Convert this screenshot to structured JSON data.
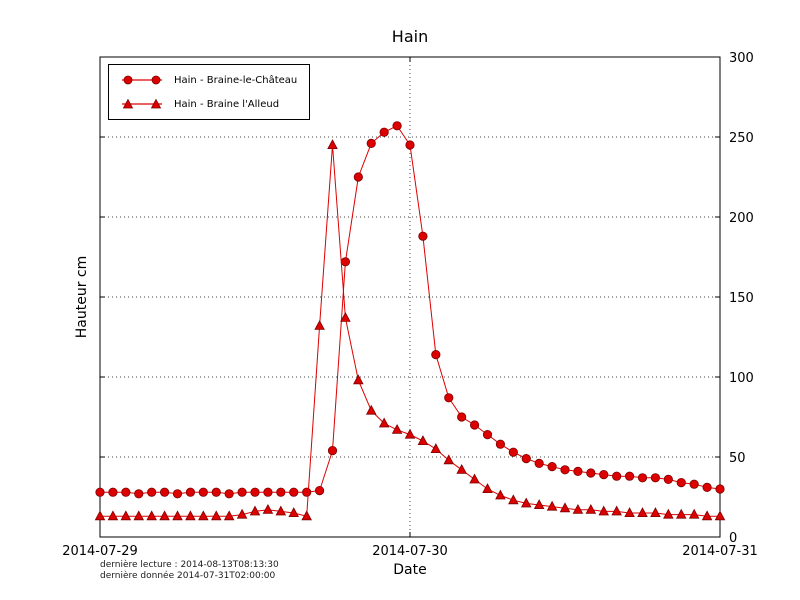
{
  "figure": {
    "background": "#ffffff"
  },
  "footer": {
    "line1": "dernière lecture : 2014-08-13T08:13:30",
    "line2": "dernière donnée  2014-07-31T02:00:00"
  },
  "chart_data": {
    "type": "line",
    "title": "Hain",
    "xlabel": "Date",
    "ylabel": "Hauteur cm",
    "x_unit": "hours since 2014-07-29 00:00",
    "x_range_hours": [
      0,
      48
    ],
    "ylim": [
      0,
      300
    ],
    "x_ticks": [
      {
        "hour": 0,
        "label": "2014-07-29"
      },
      {
        "hour": 24,
        "label": "2014-07-30"
      },
      {
        "hour": 48,
        "label": "2014-07-31"
      }
    ],
    "y_ticks": [
      0,
      50,
      100,
      150,
      200,
      250,
      300
    ],
    "grid": "dotted",
    "legend_position": "upper-left",
    "series_color": "#dd0000",
    "marker_edge_color": "#7e0000",
    "x_hours": [
      0,
      1,
      2,
      3,
      4,
      5,
      6,
      7,
      8,
      9,
      10,
      11,
      12,
      13,
      14,
      15,
      16,
      17,
      18,
      19,
      20,
      21,
      22,
      23,
      24,
      25,
      26,
      27,
      28,
      29,
      30,
      31,
      32,
      33,
      34,
      35,
      36,
      37,
      38,
      39,
      40,
      41,
      42,
      43,
      44,
      45,
      46,
      47,
      48
    ],
    "series": [
      {
        "name": "Hain - Braine-le-Château",
        "marker": "circle",
        "color": "#dd0000",
        "values": [
          28,
          28,
          28,
          27,
          28,
          28,
          27,
          28,
          28,
          28,
          27,
          28,
          28,
          28,
          28,
          28,
          28,
          29,
          54,
          172,
          225,
          246,
          253,
          257,
          245,
          188,
          114,
          87,
          75,
          70,
          64,
          58,
          53,
          49,
          46,
          44,
          42,
          41,
          40,
          39,
          38,
          38,
          37,
          37,
          36,
          34,
          33,
          31,
          30
        ]
      },
      {
        "name": "Hain - Braine l'Alleud",
        "marker": "triangle",
        "color": "#dd0000",
        "values": [
          13,
          13,
          13,
          13,
          13,
          13,
          13,
          13,
          13,
          13,
          13,
          14,
          16,
          17,
          16,
          15,
          13,
          132,
          245,
          137,
          98,
          79,
          71,
          67,
          64,
          60,
          55,
          48,
          42,
          36,
          30,
          26,
          23,
          21,
          20,
          19,
          18,
          17,
          17,
          16,
          16,
          15,
          15,
          15,
          14,
          14,
          14,
          13,
          13
        ]
      }
    ]
  }
}
